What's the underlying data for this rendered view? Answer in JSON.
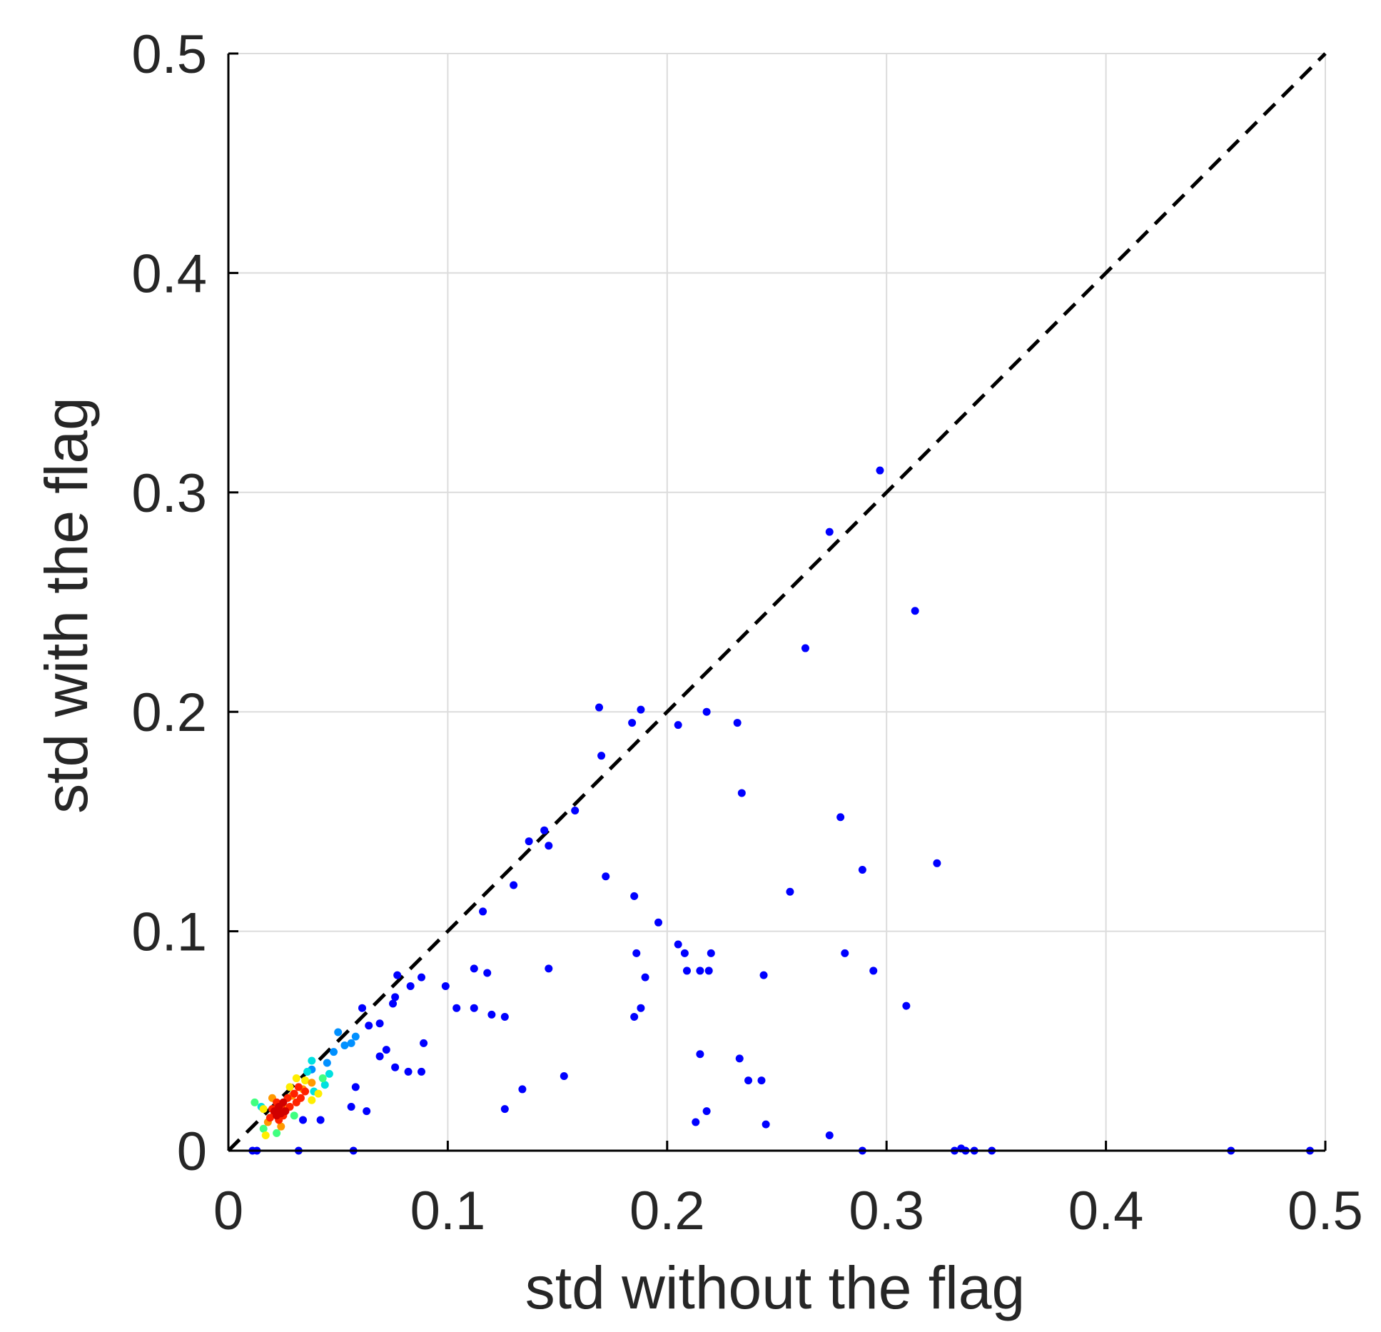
{
  "chart_data": {
    "type": "scatter",
    "title": "",
    "xlabel": "std without the flag",
    "ylabel": "std with the flag",
    "xlim": [
      0,
      0.5
    ],
    "ylim": [
      0,
      0.5
    ],
    "xticks": [
      0,
      0.1,
      0.2,
      0.3,
      0.4,
      0.5
    ],
    "yticks": [
      0,
      0.1,
      0.2,
      0.3,
      0.4,
      0.5
    ],
    "xtick_labels": [
      "0",
      "0.1",
      "0.2",
      "0.3",
      "0.4",
      "0.5"
    ],
    "ytick_labels": [
      "0",
      "0.1",
      "0.2",
      "0.3",
      "0.4",
      "0.5"
    ],
    "grid": true,
    "reference_line": {
      "style": "dashed",
      "color": "#000000",
      "from": [
        0,
        0
      ],
      "to": [
        0.5,
        0.5
      ]
    },
    "colormap": "jet (point density)",
    "series": [
      {
        "color": "#0000ff",
        "points": [
          [
            0.297,
            0.31
          ],
          [
            0.274,
            0.282
          ],
          [
            0.313,
            0.246
          ],
          [
            0.263,
            0.229
          ],
          [
            0.169,
            0.202
          ],
          [
            0.188,
            0.201
          ],
          [
            0.218,
            0.2
          ],
          [
            0.205,
            0.194
          ],
          [
            0.184,
            0.195
          ],
          [
            0.232,
            0.195
          ],
          [
            0.17,
            0.18
          ],
          [
            0.234,
            0.163
          ],
          [
            0.158,
            0.155
          ],
          [
            0.279,
            0.152
          ],
          [
            0.144,
            0.146
          ],
          [
            0.137,
            0.141
          ],
          [
            0.146,
            0.139
          ],
          [
            0.323,
            0.131
          ],
          [
            0.289,
            0.128
          ],
          [
            0.172,
            0.125
          ],
          [
            0.13,
            0.121
          ],
          [
            0.256,
            0.118
          ],
          [
            0.185,
            0.116
          ],
          [
            0.116,
            0.109
          ],
          [
            0.196,
            0.104
          ],
          [
            0.205,
            0.094
          ],
          [
            0.208,
            0.09
          ],
          [
            0.186,
            0.09
          ],
          [
            0.22,
            0.09
          ],
          [
            0.281,
            0.09
          ],
          [
            0.112,
            0.083
          ],
          [
            0.146,
            0.083
          ],
          [
            0.209,
            0.082
          ],
          [
            0.215,
            0.082
          ],
          [
            0.219,
            0.082
          ],
          [
            0.294,
            0.082
          ],
          [
            0.118,
            0.081
          ],
          [
            0.244,
            0.08
          ],
          [
            0.077,
            0.08
          ],
          [
            0.088,
            0.079
          ],
          [
            0.19,
            0.079
          ],
          [
            0.083,
            0.075
          ],
          [
            0.099,
            0.075
          ],
          [
            0.076,
            0.07
          ],
          [
            0.075,
            0.067
          ],
          [
            0.104,
            0.065
          ],
          [
            0.112,
            0.065
          ],
          [
            0.188,
            0.065
          ],
          [
            0.309,
            0.066
          ],
          [
            0.061,
            0.065
          ],
          [
            0.12,
            0.062
          ],
          [
            0.126,
            0.061
          ],
          [
            0.185,
            0.061
          ],
          [
            0.069,
            0.058
          ],
          [
            0.064,
            0.057
          ],
          [
            0.089,
            0.049
          ],
          [
            0.072,
            0.046
          ],
          [
            0.069,
            0.043
          ],
          [
            0.215,
            0.044
          ],
          [
            0.233,
            0.042
          ],
          [
            0.076,
            0.038
          ],
          [
            0.082,
            0.036
          ],
          [
            0.088,
            0.036
          ],
          [
            0.153,
            0.034
          ],
          [
            0.237,
            0.032
          ],
          [
            0.243,
            0.032
          ],
          [
            0.058,
            0.029
          ],
          [
            0.134,
            0.028
          ],
          [
            0.126,
            0.019
          ],
          [
            0.056,
            0.02
          ],
          [
            0.218,
            0.018
          ],
          [
            0.063,
            0.018
          ],
          [
            0.213,
            0.013
          ],
          [
            0.245,
            0.012
          ],
          [
            0.034,
            0.014
          ],
          [
            0.042,
            0.014
          ],
          [
            0.274,
            0.007
          ],
          [
            0.011,
            0.0
          ],
          [
            0.013,
            0.0
          ],
          [
            0.032,
            0.0
          ],
          [
            0.057,
            0.0
          ],
          [
            0.289,
            0.0
          ],
          [
            0.331,
            0.0
          ],
          [
            0.334,
            0.001
          ],
          [
            0.336,
            0.0
          ],
          [
            0.34,
            0.0
          ],
          [
            0.348,
            0.0
          ],
          [
            0.457,
            0.0
          ],
          [
            0.493,
            0.0
          ]
        ]
      },
      {
        "color": "#0090ff",
        "points": [
          [
            0.05,
            0.054
          ],
          [
            0.053,
            0.048
          ],
          [
            0.056,
            0.049
          ],
          [
            0.058,
            0.052
          ],
          [
            0.048,
            0.045
          ],
          [
            0.045,
            0.04
          ],
          [
            0.038,
            0.037
          ]
        ]
      },
      {
        "color": "#00e0e0",
        "points": [
          [
            0.038,
            0.041
          ],
          [
            0.046,
            0.035
          ],
          [
            0.039,
            0.027
          ],
          [
            0.015,
            0.02
          ],
          [
            0.044,
            0.03
          ],
          [
            0.036,
            0.036
          ]
        ]
      },
      {
        "color": "#40ff80",
        "points": [
          [
            0.012,
            0.022
          ],
          [
            0.016,
            0.01
          ],
          [
            0.022,
            0.008
          ],
          [
            0.03,
            0.016
          ],
          [
            0.043,
            0.033
          ]
        ]
      },
      {
        "color": "#ffee00",
        "points": [
          [
            0.031,
            0.033
          ],
          [
            0.035,
            0.032
          ],
          [
            0.016,
            0.019
          ],
          [
            0.041,
            0.026
          ],
          [
            0.017,
            0.007
          ],
          [
            0.038,
            0.023
          ],
          [
            0.028,
            0.029
          ]
        ]
      },
      {
        "color": "#ff9900",
        "points": [
          [
            0.02,
            0.024
          ],
          [
            0.029,
            0.025
          ],
          [
            0.034,
            0.028
          ],
          [
            0.018,
            0.013
          ],
          [
            0.024,
            0.011
          ],
          [
            0.038,
            0.031
          ],
          [
            0.026,
            0.019
          ]
        ]
      },
      {
        "color": "#ff2200",
        "points": [
          [
            0.02,
            0.019
          ],
          [
            0.022,
            0.022
          ],
          [
            0.024,
            0.02
          ],
          [
            0.027,
            0.024
          ],
          [
            0.03,
            0.026
          ],
          [
            0.032,
            0.029
          ],
          [
            0.025,
            0.016
          ],
          [
            0.019,
            0.015
          ],
          [
            0.033,
            0.024
          ],
          [
            0.028,
            0.02
          ],
          [
            0.035,
            0.027
          ],
          [
            0.021,
            0.017
          ],
          [
            0.023,
            0.014
          ],
          [
            0.031,
            0.022
          ]
        ]
      },
      {
        "color": "#d00000",
        "points": [
          [
            0.021,
            0.018
          ],
          [
            0.023,
            0.02
          ],
          [
            0.025,
            0.022
          ],
          [
            0.026,
            0.018
          ],
          [
            0.022,
            0.016
          ],
          [
            0.024,
            0.017
          ]
        ]
      }
    ]
  }
}
